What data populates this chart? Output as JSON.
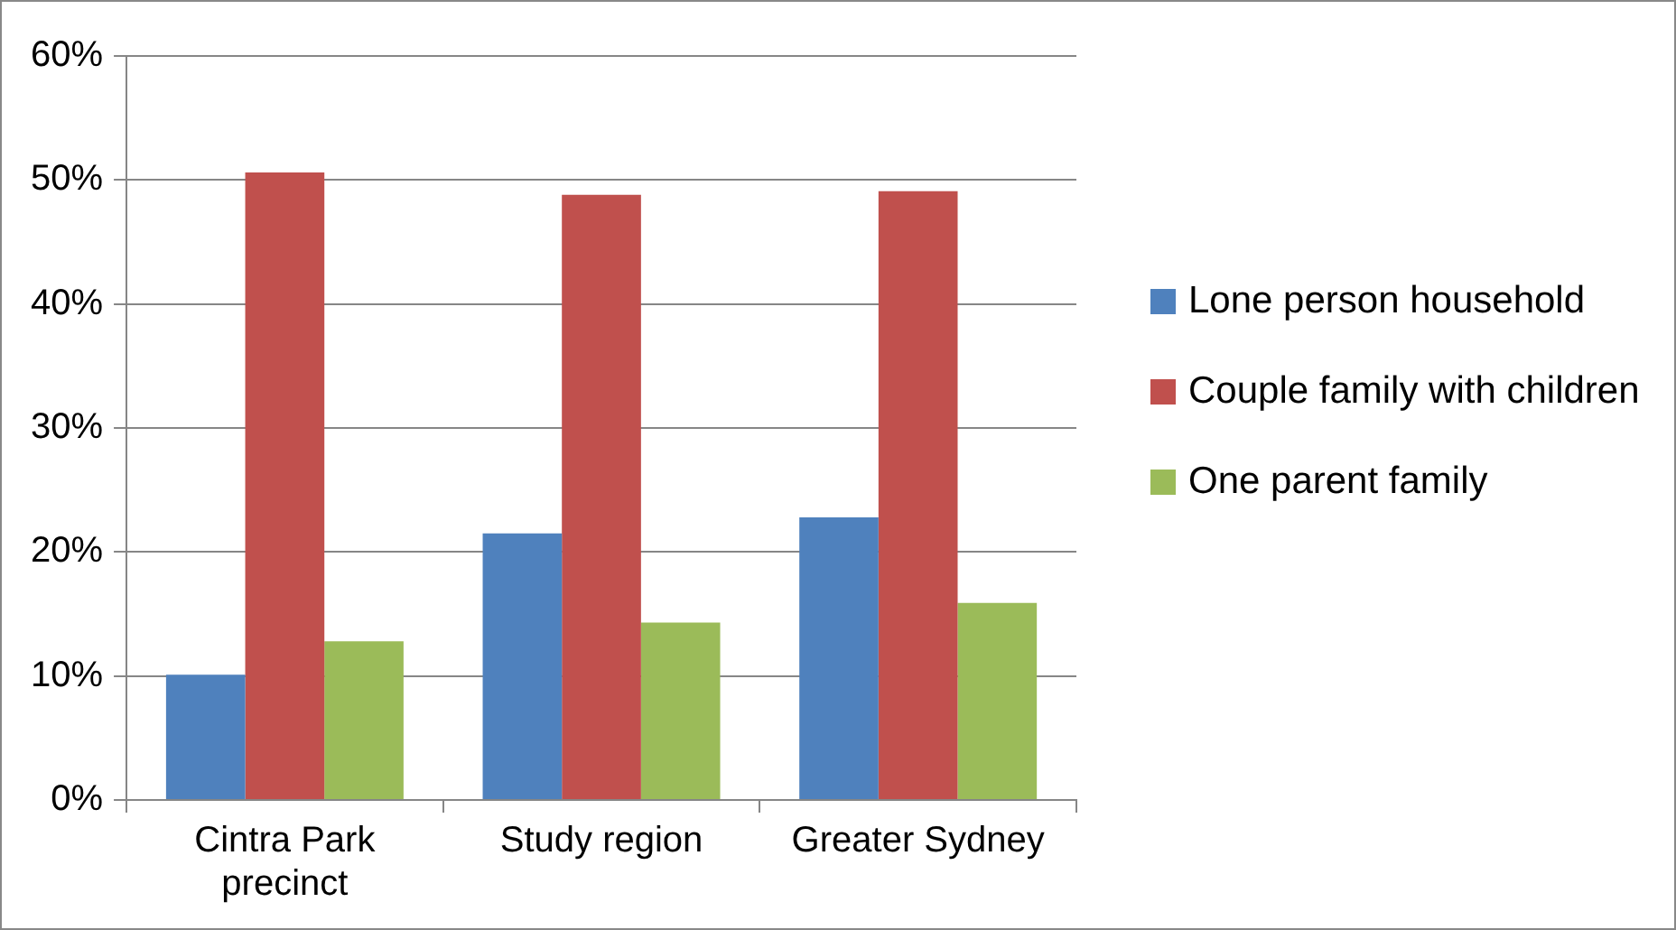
{
  "chart_data": {
    "type": "bar",
    "categories": [
      "Cintra Park precinct",
      "Study region",
      "Greater Sydney"
    ],
    "series": [
      {
        "name": "Lone person household",
        "color": "#4f81bd",
        "values": [
          10.1,
          21.5,
          22.8
        ]
      },
      {
        "name": "Couple family with children",
        "color": "#c0504d",
        "values": [
          50.6,
          48.8,
          49.1
        ]
      },
      {
        "name": "One parent family",
        "color": "#9bbb59",
        "values": [
          12.8,
          14.3,
          15.9
        ]
      }
    ],
    "ylim": [
      0,
      60
    ],
    "yticks": [
      {
        "value": 0,
        "label": "0%"
      },
      {
        "value": 10,
        "label": "10%"
      },
      {
        "value": 20,
        "label": "20%"
      },
      {
        "value": 30,
        "label": "30%"
      },
      {
        "value": 40,
        "label": "40%"
      },
      {
        "value": 50,
        "label": "50%"
      },
      {
        "value": 60,
        "label": "60%"
      }
    ],
    "grid": "y",
    "legend": "right"
  }
}
